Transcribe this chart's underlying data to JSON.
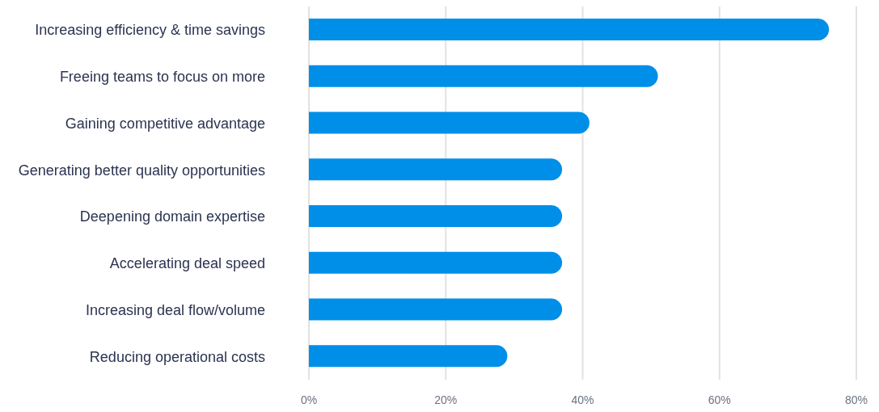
{
  "chart_data": {
    "type": "bar",
    "orientation": "horizontal",
    "categories": [
      "Increasing efficiency & time savings",
      "Freeing teams to focus on more",
      "Gaining competitive advantage",
      "Generating better quality opportunities",
      "Deepening domain expertise",
      "Accelerating deal speed",
      "Increasing deal flow/volume",
      "Reducing operational costs"
    ],
    "values": [
      76,
      51,
      41,
      37,
      37,
      37,
      37,
      29
    ],
    "color": "#008fe8",
    "xlim": [
      0,
      80
    ],
    "xticks": [
      {
        "value": 0,
        "label": "0%"
      },
      {
        "value": 20,
        "label": "20%"
      },
      {
        "value": 40,
        "label": "40%"
      },
      {
        "value": 60,
        "label": "60%"
      },
      {
        "value": 80,
        "label": "80%"
      }
    ],
    "grid": "x"
  }
}
